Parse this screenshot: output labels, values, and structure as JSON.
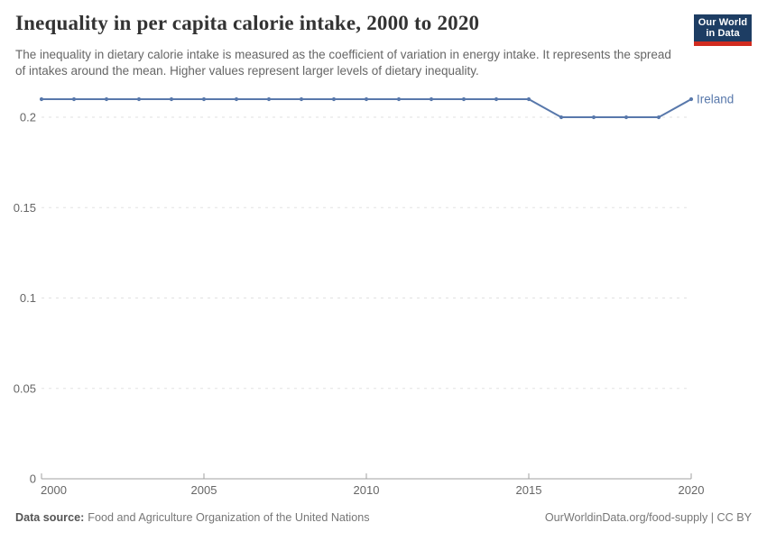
{
  "header": {
    "title": "Inequality in per capita calorie intake, 2000 to 2020",
    "subtitle": "The inequality in dietary calorie intake is measured as the coefficient of variation in energy intake. It represents the spread of intakes around the mean. Higher values represent larger levels of dietary inequality.",
    "logo": {
      "line1": "Our World",
      "line2": "in Data",
      "bg_color": "#1d3d63",
      "accent_color": "#d12b1f"
    }
  },
  "chart_data": {
    "type": "line",
    "title": "Inequality in per capita calorie intake, 2000 to 2020",
    "xlabel": "",
    "ylabel": "",
    "xlim": [
      2000,
      2020
    ],
    "ylim": [
      0,
      0.21
    ],
    "xticks": [
      2000,
      2005,
      2010,
      2015,
      2020
    ],
    "yticks": [
      {
        "value": 0,
        "label": "0"
      },
      {
        "value": 0.05,
        "label": "0.05"
      },
      {
        "value": 0.1,
        "label": "0.1"
      },
      {
        "value": 0.15,
        "label": "0.15"
      },
      {
        "value": 0.2,
        "label": "0.2"
      }
    ],
    "grid": "horizontal-dashed",
    "legend_position": "end-of-line-label",
    "series": [
      {
        "name": "Ireland",
        "color": "#5878ab",
        "x": [
          2000,
          2001,
          2002,
          2003,
          2004,
          2005,
          2006,
          2007,
          2008,
          2009,
          2010,
          2011,
          2012,
          2013,
          2014,
          2015,
          2016,
          2017,
          2018,
          2019,
          2020
        ],
        "values": [
          0.21,
          0.21,
          0.21,
          0.21,
          0.21,
          0.21,
          0.21,
          0.21,
          0.21,
          0.21,
          0.21,
          0.21,
          0.21,
          0.21,
          0.21,
          0.21,
          0.2,
          0.2,
          0.2,
          0.2,
          0.21
        ]
      }
    ]
  },
  "footer": {
    "source_label": "Data source:",
    "source_text": "Food and Agriculture Organization of the United Nations",
    "credit": "OurWorldinData.org/food-supply | CC BY"
  }
}
